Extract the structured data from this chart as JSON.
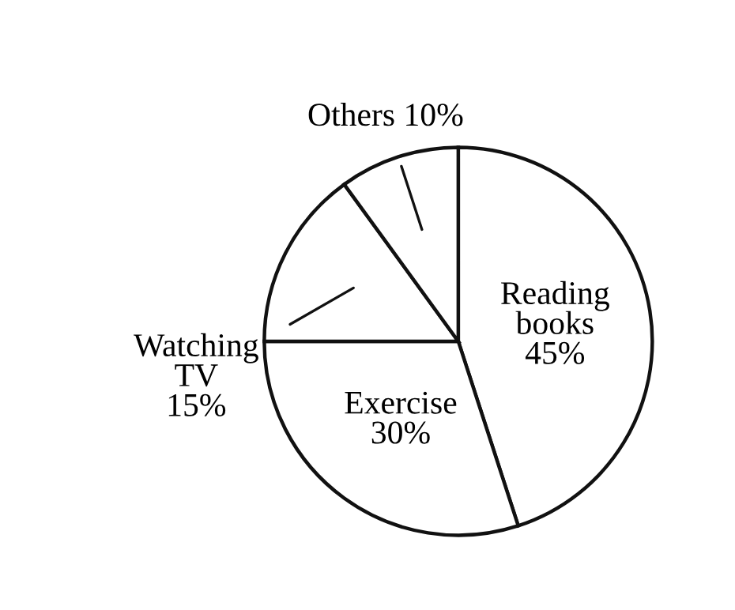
{
  "chart_data": {
    "type": "pie",
    "categories": [
      "Reading\nbooks",
      "Exercise",
      "Watching\nTV",
      "Others"
    ],
    "values": [
      45,
      30,
      15,
      10
    ],
    "value_labels": [
      "45%",
      "30%",
      "15%",
      "10%"
    ],
    "colors": [
      "#ffffff",
      "#ffffff",
      "#ffffff",
      "#ffffff"
    ]
  }
}
